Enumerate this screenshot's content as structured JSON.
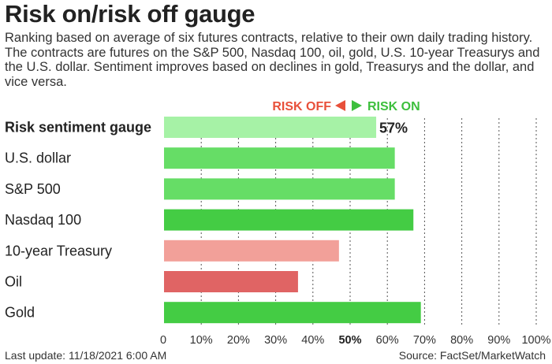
{
  "header": {
    "title": "Risk on/risk off gauge",
    "subtitle": "Ranking based on average of six futures contracts, relative to their own daily trading history. The contracts are futures on the S&P 500, Nasdaq 100, oil, gold, U.S. 10-year Treasurys and the U.S. dollar. Sentiment improves based on declines in gold, Treasurys and the dollar, and vice versa."
  },
  "legend": {
    "risk_off": "RISK OFF",
    "risk_on": "RISK ON",
    "risk_off_color": "#e8503a",
    "risk_on_color": "#3dbf3d"
  },
  "footer": {
    "last_update": "Last update: 11/18/2021 6:00 AM",
    "source": "Source: FactSet/MarketWatch"
  },
  "chart_data": {
    "type": "bar",
    "orientation": "horizontal",
    "categories": [
      "Risk sentiment gauge",
      "U.S. dollar",
      "S&P 500",
      "Nasdaq 100",
      "10-year Treasury",
      "Oil",
      "Gold"
    ],
    "values": [
      57,
      62,
      62,
      67,
      47,
      36,
      69
    ],
    "colors": [
      "#a6f2a6",
      "#66dd66",
      "#66dd66",
      "#44cc44",
      "#f2a099",
      "#e06464",
      "#44cc44"
    ],
    "value_labels": [
      "57%",
      "",
      "",
      "",
      "",
      "",
      ""
    ],
    "x_ticks": [
      "0",
      "10%",
      "20%",
      "30%",
      "40%",
      "50%",
      "60%",
      "70%",
      "80%",
      "90%",
      "100%"
    ],
    "xlim": [
      0,
      100
    ],
    "highlight_tick": "50%",
    "grid": "dotted vertical"
  }
}
